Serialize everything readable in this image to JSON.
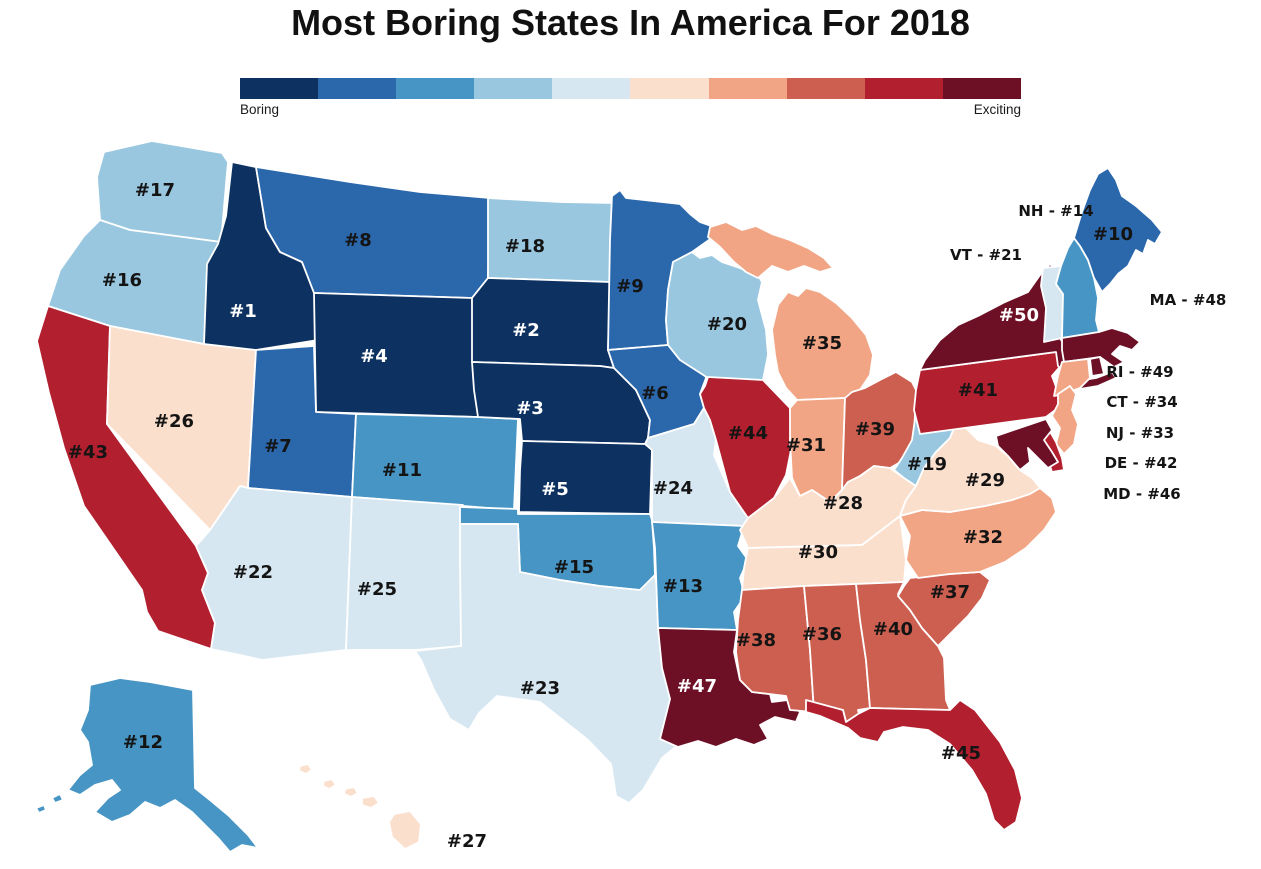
{
  "chart_data": {
    "type": "heatmap",
    "subtype": "us-state-choropleth",
    "title": "Most Boring States In America For 2018",
    "value_label": "boring_rank",
    "range": [
      1,
      50
    ],
    "legend": {
      "left": "Boring",
      "right": "Exciting",
      "colors": [
        "#0d3261",
        "#2b67ab",
        "#4795c4",
        "#99c7e0",
        "#d6e7f1",
        "#fbdfcd",
        "#f2a585",
        "#cd5f50",
        "#b2202f",
        "#6d1026"
      ]
    },
    "states": [
      {
        "abbr": "AL",
        "name": "Alabama",
        "rank": 36,
        "label": "#36"
      },
      {
        "abbr": "AK",
        "name": "Alaska",
        "rank": 12,
        "label": "#12"
      },
      {
        "abbr": "AZ",
        "name": "Arizona",
        "rank": 22,
        "label": "#22"
      },
      {
        "abbr": "AR",
        "name": "Arkansas",
        "rank": 13,
        "label": "#13"
      },
      {
        "abbr": "CA",
        "name": "California",
        "rank": 43,
        "label": "#43"
      },
      {
        "abbr": "CO",
        "name": "Colorado",
        "rank": 11,
        "label": "#11"
      },
      {
        "abbr": "CT",
        "name": "Connecticut",
        "rank": 34,
        "label": "#34"
      },
      {
        "abbr": "DE",
        "name": "Delaware",
        "rank": 42,
        "label": "#42"
      },
      {
        "abbr": "FL",
        "name": "Florida",
        "rank": 45,
        "label": "#45"
      },
      {
        "abbr": "GA",
        "name": "Georgia",
        "rank": 40,
        "label": "#40"
      },
      {
        "abbr": "HI",
        "name": "Hawaii",
        "rank": 27,
        "label": "#27"
      },
      {
        "abbr": "ID",
        "name": "Idaho",
        "rank": 1,
        "label": "#1",
        "label_color": "#ffffff"
      },
      {
        "abbr": "IL",
        "name": "Illinois",
        "rank": 44,
        "label": "#44"
      },
      {
        "abbr": "IN",
        "name": "Indiana",
        "rank": 31,
        "label": "#31"
      },
      {
        "abbr": "IA",
        "name": "Iowa",
        "rank": 6,
        "label": "#6"
      },
      {
        "abbr": "KS",
        "name": "Kansas",
        "rank": 5,
        "label": "#5",
        "label_color": "#ffffff"
      },
      {
        "abbr": "KY",
        "name": "Kentucky",
        "rank": 28,
        "label": "#28"
      },
      {
        "abbr": "LA",
        "name": "Louisiana",
        "rank": 47,
        "label": "#47",
        "label_color": "#ffffff"
      },
      {
        "abbr": "ME",
        "name": "Maine",
        "rank": 10,
        "label": "#10"
      },
      {
        "abbr": "MD",
        "name": "Maryland",
        "rank": 46,
        "label": "#46"
      },
      {
        "abbr": "MA",
        "name": "Massachusetts",
        "rank": 48,
        "label": "#48"
      },
      {
        "abbr": "MI",
        "name": "Michigan",
        "rank": 35,
        "label": "#35"
      },
      {
        "abbr": "MN",
        "name": "Minnesota",
        "rank": 9,
        "label": "#9"
      },
      {
        "abbr": "MS",
        "name": "Mississippi",
        "rank": 38,
        "label": "#38"
      },
      {
        "abbr": "MO",
        "name": "Missouri",
        "rank": 24,
        "label": "#24"
      },
      {
        "abbr": "MT",
        "name": "Montana",
        "rank": 8,
        "label": "#8"
      },
      {
        "abbr": "NE",
        "name": "Nebraska",
        "rank": 3,
        "label": "#3",
        "label_color": "#ffffff"
      },
      {
        "abbr": "NV",
        "name": "Nevada",
        "rank": 26,
        "label": "#26"
      },
      {
        "abbr": "NH",
        "name": "New Hampshire",
        "rank": 14,
        "label": "#14"
      },
      {
        "abbr": "NJ",
        "name": "New Jersey",
        "rank": 33,
        "label": "#33"
      },
      {
        "abbr": "NM",
        "name": "New Mexico",
        "rank": 25,
        "label": "#25"
      },
      {
        "abbr": "NY",
        "name": "New York",
        "rank": 50,
        "label": "#50",
        "label_color": "#ffffff"
      },
      {
        "abbr": "NC",
        "name": "North Carolina",
        "rank": 32,
        "label": "#32"
      },
      {
        "abbr": "ND",
        "name": "North Dakota",
        "rank": 18,
        "label": "#18"
      },
      {
        "abbr": "OH",
        "name": "Ohio",
        "rank": 39,
        "label": "#39"
      },
      {
        "abbr": "OK",
        "name": "Oklahoma",
        "rank": 15,
        "label": "#15"
      },
      {
        "abbr": "OR",
        "name": "Oregon",
        "rank": 16,
        "label": "#16"
      },
      {
        "abbr": "PA",
        "name": "Pennsylvania",
        "rank": 41,
        "label": "#41"
      },
      {
        "abbr": "RI",
        "name": "Rhode Island",
        "rank": 49,
        "label": "#49"
      },
      {
        "abbr": "SC",
        "name": "South Carolina",
        "rank": 37,
        "label": "#37"
      },
      {
        "abbr": "SD",
        "name": "South Dakota",
        "rank": 2,
        "label": "#2",
        "label_color": "#ffffff"
      },
      {
        "abbr": "TN",
        "name": "Tennessee",
        "rank": 30,
        "label": "#30"
      },
      {
        "abbr": "TX",
        "name": "Texas",
        "rank": 23,
        "label": "#23"
      },
      {
        "abbr": "UT",
        "name": "Utah",
        "rank": 7,
        "label": "#7"
      },
      {
        "abbr": "VT",
        "name": "Vermont",
        "rank": 21,
        "label": "#21"
      },
      {
        "abbr": "VA",
        "name": "Virginia",
        "rank": 29,
        "label": "#29"
      },
      {
        "abbr": "WA",
        "name": "Washington",
        "rank": 17,
        "label": "#17"
      },
      {
        "abbr": "WV",
        "name": "West Virginia",
        "rank": 19,
        "label": "#19"
      },
      {
        "abbr": "WI",
        "name": "Wisconsin",
        "rank": 20,
        "label": "#20"
      },
      {
        "abbr": "WY",
        "name": "Wyoming",
        "rank": 4,
        "label": "#4",
        "label_color": "#ffffff"
      }
    ],
    "external_labels": [
      {
        "abbr": "NH",
        "text": "NH - #14"
      },
      {
        "abbr": "VT",
        "text": "VT - #21"
      },
      {
        "abbr": "MA",
        "text": "MA - #48"
      },
      {
        "abbr": "RI",
        "text": "RI - #49"
      },
      {
        "abbr": "CT",
        "text": "CT - #34"
      },
      {
        "abbr": "NJ",
        "text": "NJ - #33"
      },
      {
        "abbr": "DE",
        "text": "DE - #42"
      },
      {
        "abbr": "MD",
        "text": "MD - #46"
      }
    ]
  }
}
